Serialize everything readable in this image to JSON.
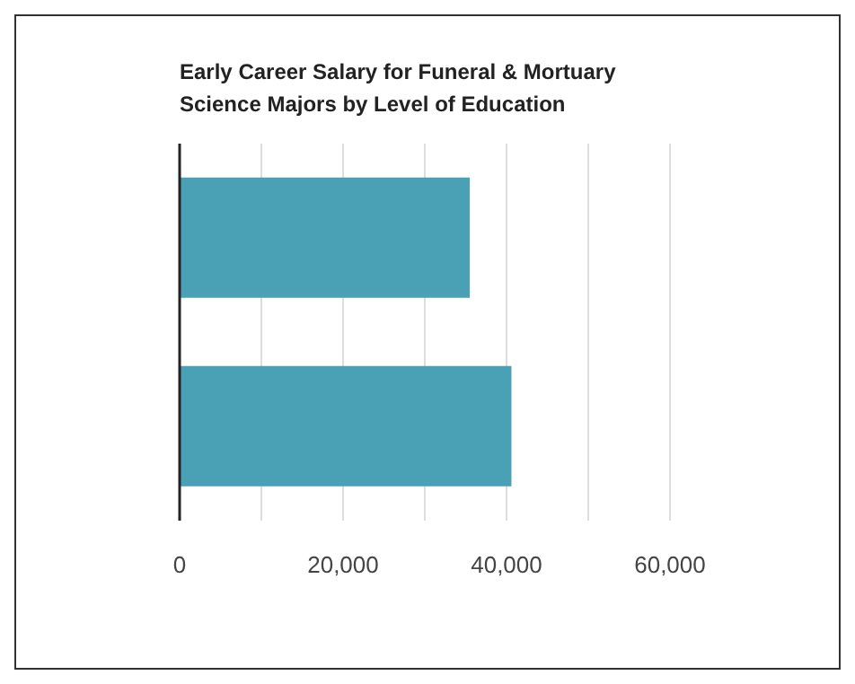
{
  "chart_data": {
    "type": "bar",
    "orientation": "horizontal",
    "title": "Early Career Salary for Funeral & Mortuary Science Majors by Level of Education",
    "categories": [
      null,
      null
    ],
    "values": [
      35500,
      40600
    ],
    "color": "#4aa0b5",
    "xlim": [
      0,
      60000
    ],
    "xticks": [
      0,
      {
        "value": 10000,
        "label": null
      },
      {
        "value": 20000,
        "label": "20,000"
      },
      {
        "value": 30000,
        "label": null
      },
      {
        "value": 40000,
        "label": "40,000"
      },
      {
        "value": 50000,
        "label": null
      },
      {
        "value": 60000,
        "label": "60,000"
      }
    ],
    "grid": "x",
    "tick_labels": "x"
  }
}
